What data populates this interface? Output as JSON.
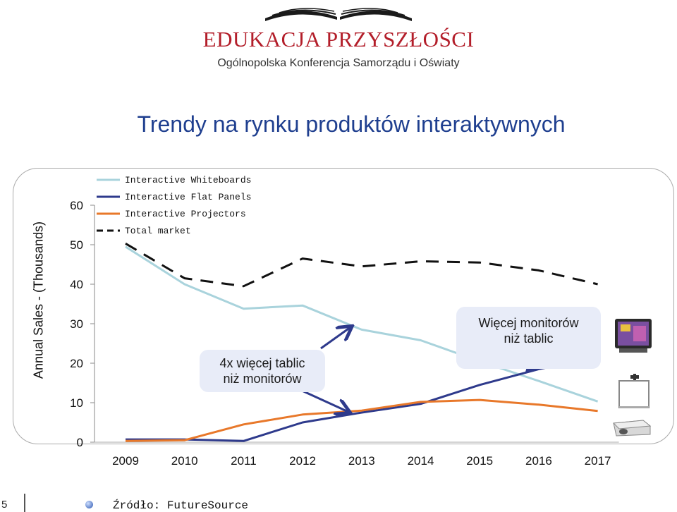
{
  "header": {
    "brand_title": "EDUKACJA PRZYSZŁOŚCI",
    "brand_subtitle": "Ogólnopolska Konferencja Samorządu i Oświaty",
    "logo_icon": "open-book-icon"
  },
  "slide_title": "Trendy na rynku produktów interaktywnych",
  "chart_data": {
    "type": "line",
    "x": [
      "2009",
      "2010",
      "2011",
      "2012",
      "2013",
      "2014",
      "2015",
      "2016",
      "2017"
    ],
    "ylabel": "Annual Sales  -  (Thousands)",
    "ylim": [
      0,
      60
    ],
    "yticks": [
      0,
      10,
      20,
      30,
      40,
      50,
      60
    ],
    "grid": false,
    "legend_position": "top-left",
    "series": [
      {
        "name": "Interactive Whiteboards",
        "color": "#a9d3dc",
        "style": "solid",
        "values": [
          49.5,
          40,
          33.8,
          34.6,
          28.5,
          25.8,
          20.5,
          15.5,
          10.3
        ]
      },
      {
        "name": "Interactive Flat Panels",
        "color": "#2e3a8c",
        "style": "solid",
        "values": [
          0.7,
          0.7,
          0.3,
          5,
          7.5,
          9.7,
          14.5,
          18.5,
          21.5
        ]
      },
      {
        "name": "Interactive Projectors",
        "color": "#e8782a",
        "style": "solid",
        "values": [
          0.3,
          0.5,
          4.5,
          7,
          8,
          10.2,
          10.7,
          9.5,
          7.9
        ]
      },
      {
        "name": "Total market",
        "color": "#111111",
        "style": "dashed",
        "values": [
          50.3,
          41.5,
          39.5,
          46.5,
          44.5,
          45.8,
          45.5,
          43.5,
          40
        ]
      }
    ],
    "annotations": [
      {
        "text": "4x więcej tablic\nniż monitorów"
      },
      {
        "text": "Więcej monitorów\nniż tablic"
      }
    ]
  },
  "callouts": {
    "c1_line1": "4x więcej tablic",
    "c1_line2": "niż monitorów",
    "c2_line1": "Więcej monitorów",
    "c2_line2": "niż tablic"
  },
  "product_icons": [
    "flat-panel-icon",
    "whiteboard-icon",
    "projector-icon"
  ],
  "footer": {
    "source": "Źródło: FutureSource",
    "page_number": "5"
  },
  "colors": {
    "brand_red": "#b31e2a",
    "title_blue": "#1f3f8f",
    "callout_bg": "#e8ecf8",
    "arrow_color": "#2e3a8c"
  }
}
